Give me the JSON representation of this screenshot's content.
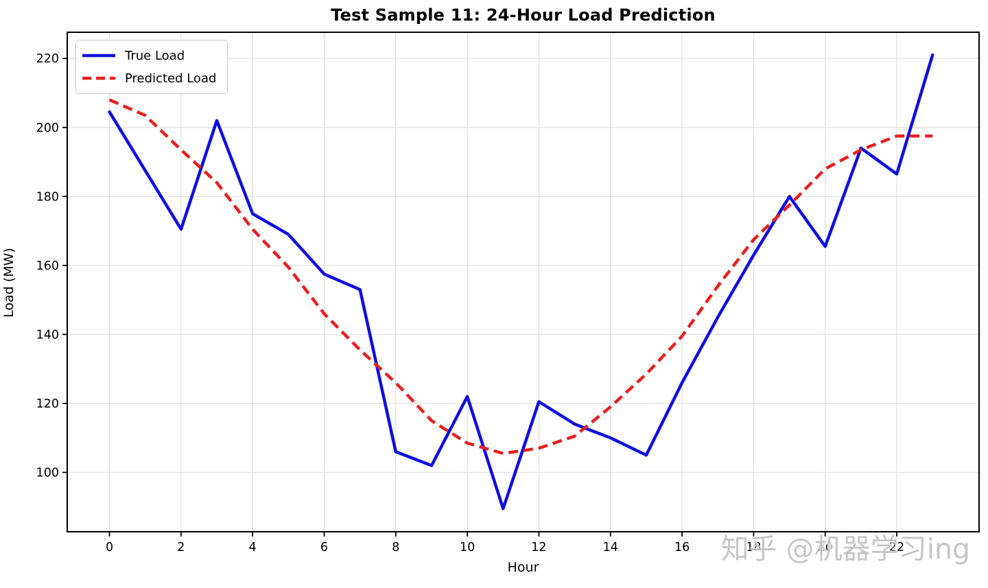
{
  "watermark": "知乎 @机器学习ing",
  "legend": {
    "items": [
      {
        "label": "True Load"
      },
      {
        "label": "Predicted Load"
      }
    ]
  },
  "chart_data": {
    "type": "line",
    "title": "Test Sample 11: 24-Hour Load Prediction",
    "xlabel": "Hour",
    "ylabel": "Load (MW)",
    "x": [
      0,
      1,
      2,
      3,
      4,
      5,
      6,
      7,
      8,
      9,
      10,
      11,
      12,
      13,
      14,
      15,
      16,
      17,
      18,
      19,
      20,
      21,
      22,
      23
    ],
    "series": [
      {
        "name": "True Load",
        "color": "#0f0fe0",
        "style": "solid",
        "values": [
          204.5,
          187.5,
          170.5,
          202,
          175,
          169,
          157.5,
          153,
          106,
          102,
          122,
          89.5,
          120.5,
          114,
          110,
          105,
          126,
          145,
          163,
          180,
          165.5,
          194,
          186.5,
          221
        ]
      },
      {
        "name": "Predicted Load",
        "color": "#e81f1f",
        "style": "dashed",
        "values": [
          208,
          203.5,
          193.5,
          184,
          170.5,
          159.5,
          146,
          135.5,
          126,
          115,
          108.5,
          105.5,
          107,
          110.5,
          119,
          128.5,
          139.5,
          154,
          167.5,
          177.5,
          188,
          193.5,
          197.5,
          197.5
        ]
      }
    ],
    "xticks": [
      0,
      2,
      4,
      6,
      8,
      10,
      12,
      14,
      16,
      18,
      20,
      22
    ],
    "yticks": [
      100,
      120,
      140,
      160,
      180,
      200,
      220
    ],
    "xlim": [
      -1.18,
      24.3
    ],
    "ylim": [
      82.8,
      227.6
    ],
    "grid": true,
    "legend_position": "upper left"
  }
}
